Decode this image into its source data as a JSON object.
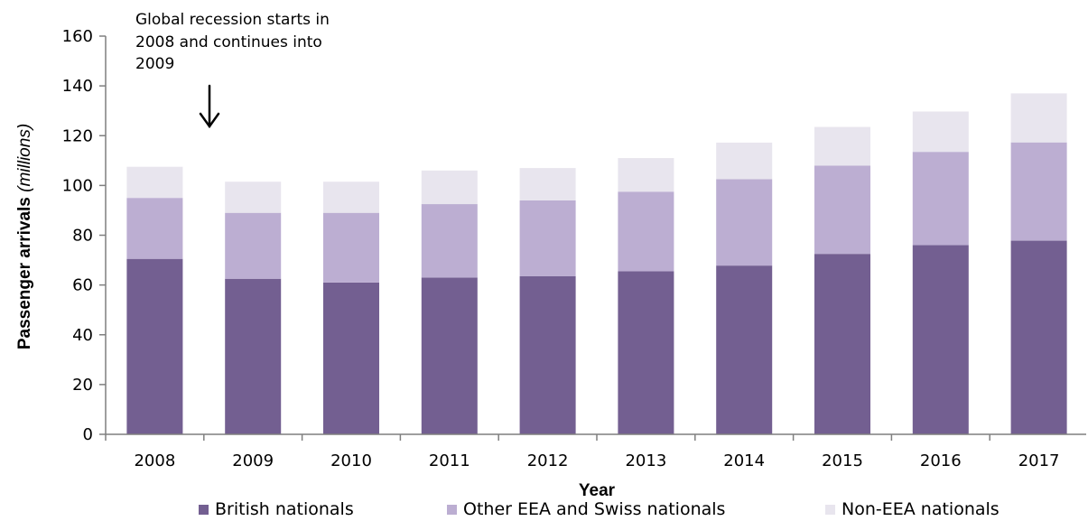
{
  "chart_data": {
    "type": "bar",
    "stacked": true,
    "categories": [
      "2008",
      "2009",
      "2010",
      "2011",
      "2012",
      "2013",
      "2014",
      "2015",
      "2016",
      "2017"
    ],
    "series": [
      {
        "name": "British nationals",
        "color": "#735f91",
        "values": [
          70.5,
          62.5,
          61,
          63,
          63.5,
          65.5,
          67.8,
          72.5,
          76,
          77.8
        ]
      },
      {
        "name": "Other EEA and Swiss nationals",
        "color": "#bcaed2",
        "values": [
          24.5,
          26.5,
          28,
          29.5,
          30.5,
          32,
          34.7,
          35.5,
          37.5,
          39.5
        ]
      },
      {
        "name": "Non-EEA nationals",
        "color": "#e8e5ee",
        "values": [
          12.5,
          12.5,
          12.5,
          13.5,
          13,
          13.5,
          14.7,
          15.5,
          16.2,
          19.7
        ]
      }
    ],
    "ylim": [
      0,
      160
    ],
    "yticks": [
      "0",
      "20",
      "40",
      "60",
      "80",
      "100",
      "120",
      "140",
      "160"
    ],
    "xlabel": "Year",
    "ylabel_main": "Passenger arrivals ",
    "ylabel_unit": "(millions)",
    "annotation": {
      "lines": [
        "Global recession starts in",
        "2008 and continues into",
        "2009"
      ]
    },
    "legend_position": "bottom",
    "grid": false
  }
}
